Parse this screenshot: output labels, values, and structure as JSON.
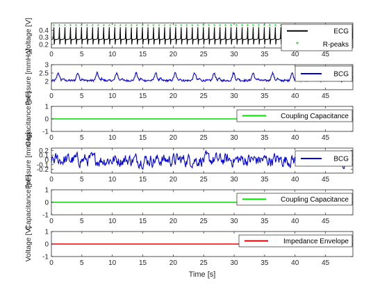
{
  "figure": {
    "xlabel": "Time [s]"
  },
  "chart_data": [
    {
      "type": "line",
      "ylabel": "Voltage [V]",
      "xlim": [
        0,
        49.5
      ],
      "ylim": [
        0.15,
        0.5
      ],
      "xticks": [
        0,
        5,
        10,
        15,
        20,
        25,
        30,
        35,
        40,
        45
      ],
      "yticks": [
        0.2,
        0.3,
        0.4
      ],
      "xtick_labels_visible": true,
      "grid": false,
      "legend": "right",
      "series": [
        {
          "name": "ECG",
          "color": "#000000",
          "kind": "ecg",
          "baseline": 0.27,
          "peak": 0.44,
          "trough": 0.2,
          "beats_per_second": 1.1
        },
        {
          "name": "R-peaks",
          "color": "#00cc00",
          "kind": "rpeaks",
          "y": 0.45,
          "marker": "*"
        }
      ]
    },
    {
      "type": "line",
      "ylabel": "Pressure [mmHg]",
      "xlim": [
        0,
        49.5
      ],
      "ylim": [
        1.5,
        3.0
      ],
      "xticks": [
        0,
        5,
        10,
        15,
        20,
        25,
        30,
        35,
        40,
        45
      ],
      "yticks": [
        2,
        2.5,
        3
      ],
      "grid": false,
      "legend": "right",
      "series": [
        {
          "name": "BCG",
          "color": "#0000dd",
          "kind": "bcg",
          "baseline": 2.05,
          "amplitude": 0.45,
          "period": 3.2
        }
      ]
    },
    {
      "type": "line",
      "ylabel": "Capacitance [pF]",
      "xlim": [
        0,
        49.5
      ],
      "ylim": [
        -1,
        1
      ],
      "xticks": [
        0,
        5,
        10,
        15,
        20,
        25,
        30,
        35,
        40,
        45
      ],
      "yticks": [
        -1,
        0,
        1
      ],
      "grid": false,
      "legend": "right",
      "series": [
        {
          "name": "Coupling Capacitance",
          "color": "#00dd00",
          "kind": "flat",
          "y": 0
        }
      ]
    },
    {
      "type": "line",
      "ylabel": "Pressure [mmHg]",
      "xlim": [
        0,
        49.5
      ],
      "ylim": [
        -0.28,
        0.25
      ],
      "xticks": [
        0,
        5,
        10,
        15,
        20,
        25,
        30,
        35,
        40,
        45
      ],
      "yticks": [
        -0.2,
        -0.1,
        0,
        0.1,
        0.2
      ],
      "grid": false,
      "legend": "right",
      "series": [
        {
          "name": "BCG",
          "color": "#0000dd",
          "kind": "noise",
          "baseline": 0.0,
          "amplitude": 0.11
        }
      ]
    },
    {
      "type": "line",
      "ylabel": "Capacitance [pF]",
      "xlim": [
        0,
        49.5
      ],
      "ylim": [
        -1,
        1
      ],
      "xticks": [
        0,
        5,
        10,
        15,
        20,
        25,
        30,
        35,
        40,
        45
      ],
      "yticks": [
        -1,
        0,
        1
      ],
      "grid": false,
      "legend": "right",
      "series": [
        {
          "name": "Coupling Capacitance",
          "color": "#00dd00",
          "kind": "flat",
          "y": 0
        }
      ]
    },
    {
      "type": "line",
      "ylabel": "Voltage [V]",
      "xlim": [
        0,
        49.5
      ],
      "ylim": [
        -1,
        1
      ],
      "xticks": [
        0,
        5,
        10,
        15,
        20,
        25,
        30,
        35,
        40,
        45
      ],
      "yticks": [
        -1,
        0,
        1
      ],
      "grid": false,
      "legend": "right",
      "series": [
        {
          "name": "Impedance Envelope",
          "color": "#ee0000",
          "kind": "flat",
          "y": 0
        }
      ]
    }
  ]
}
